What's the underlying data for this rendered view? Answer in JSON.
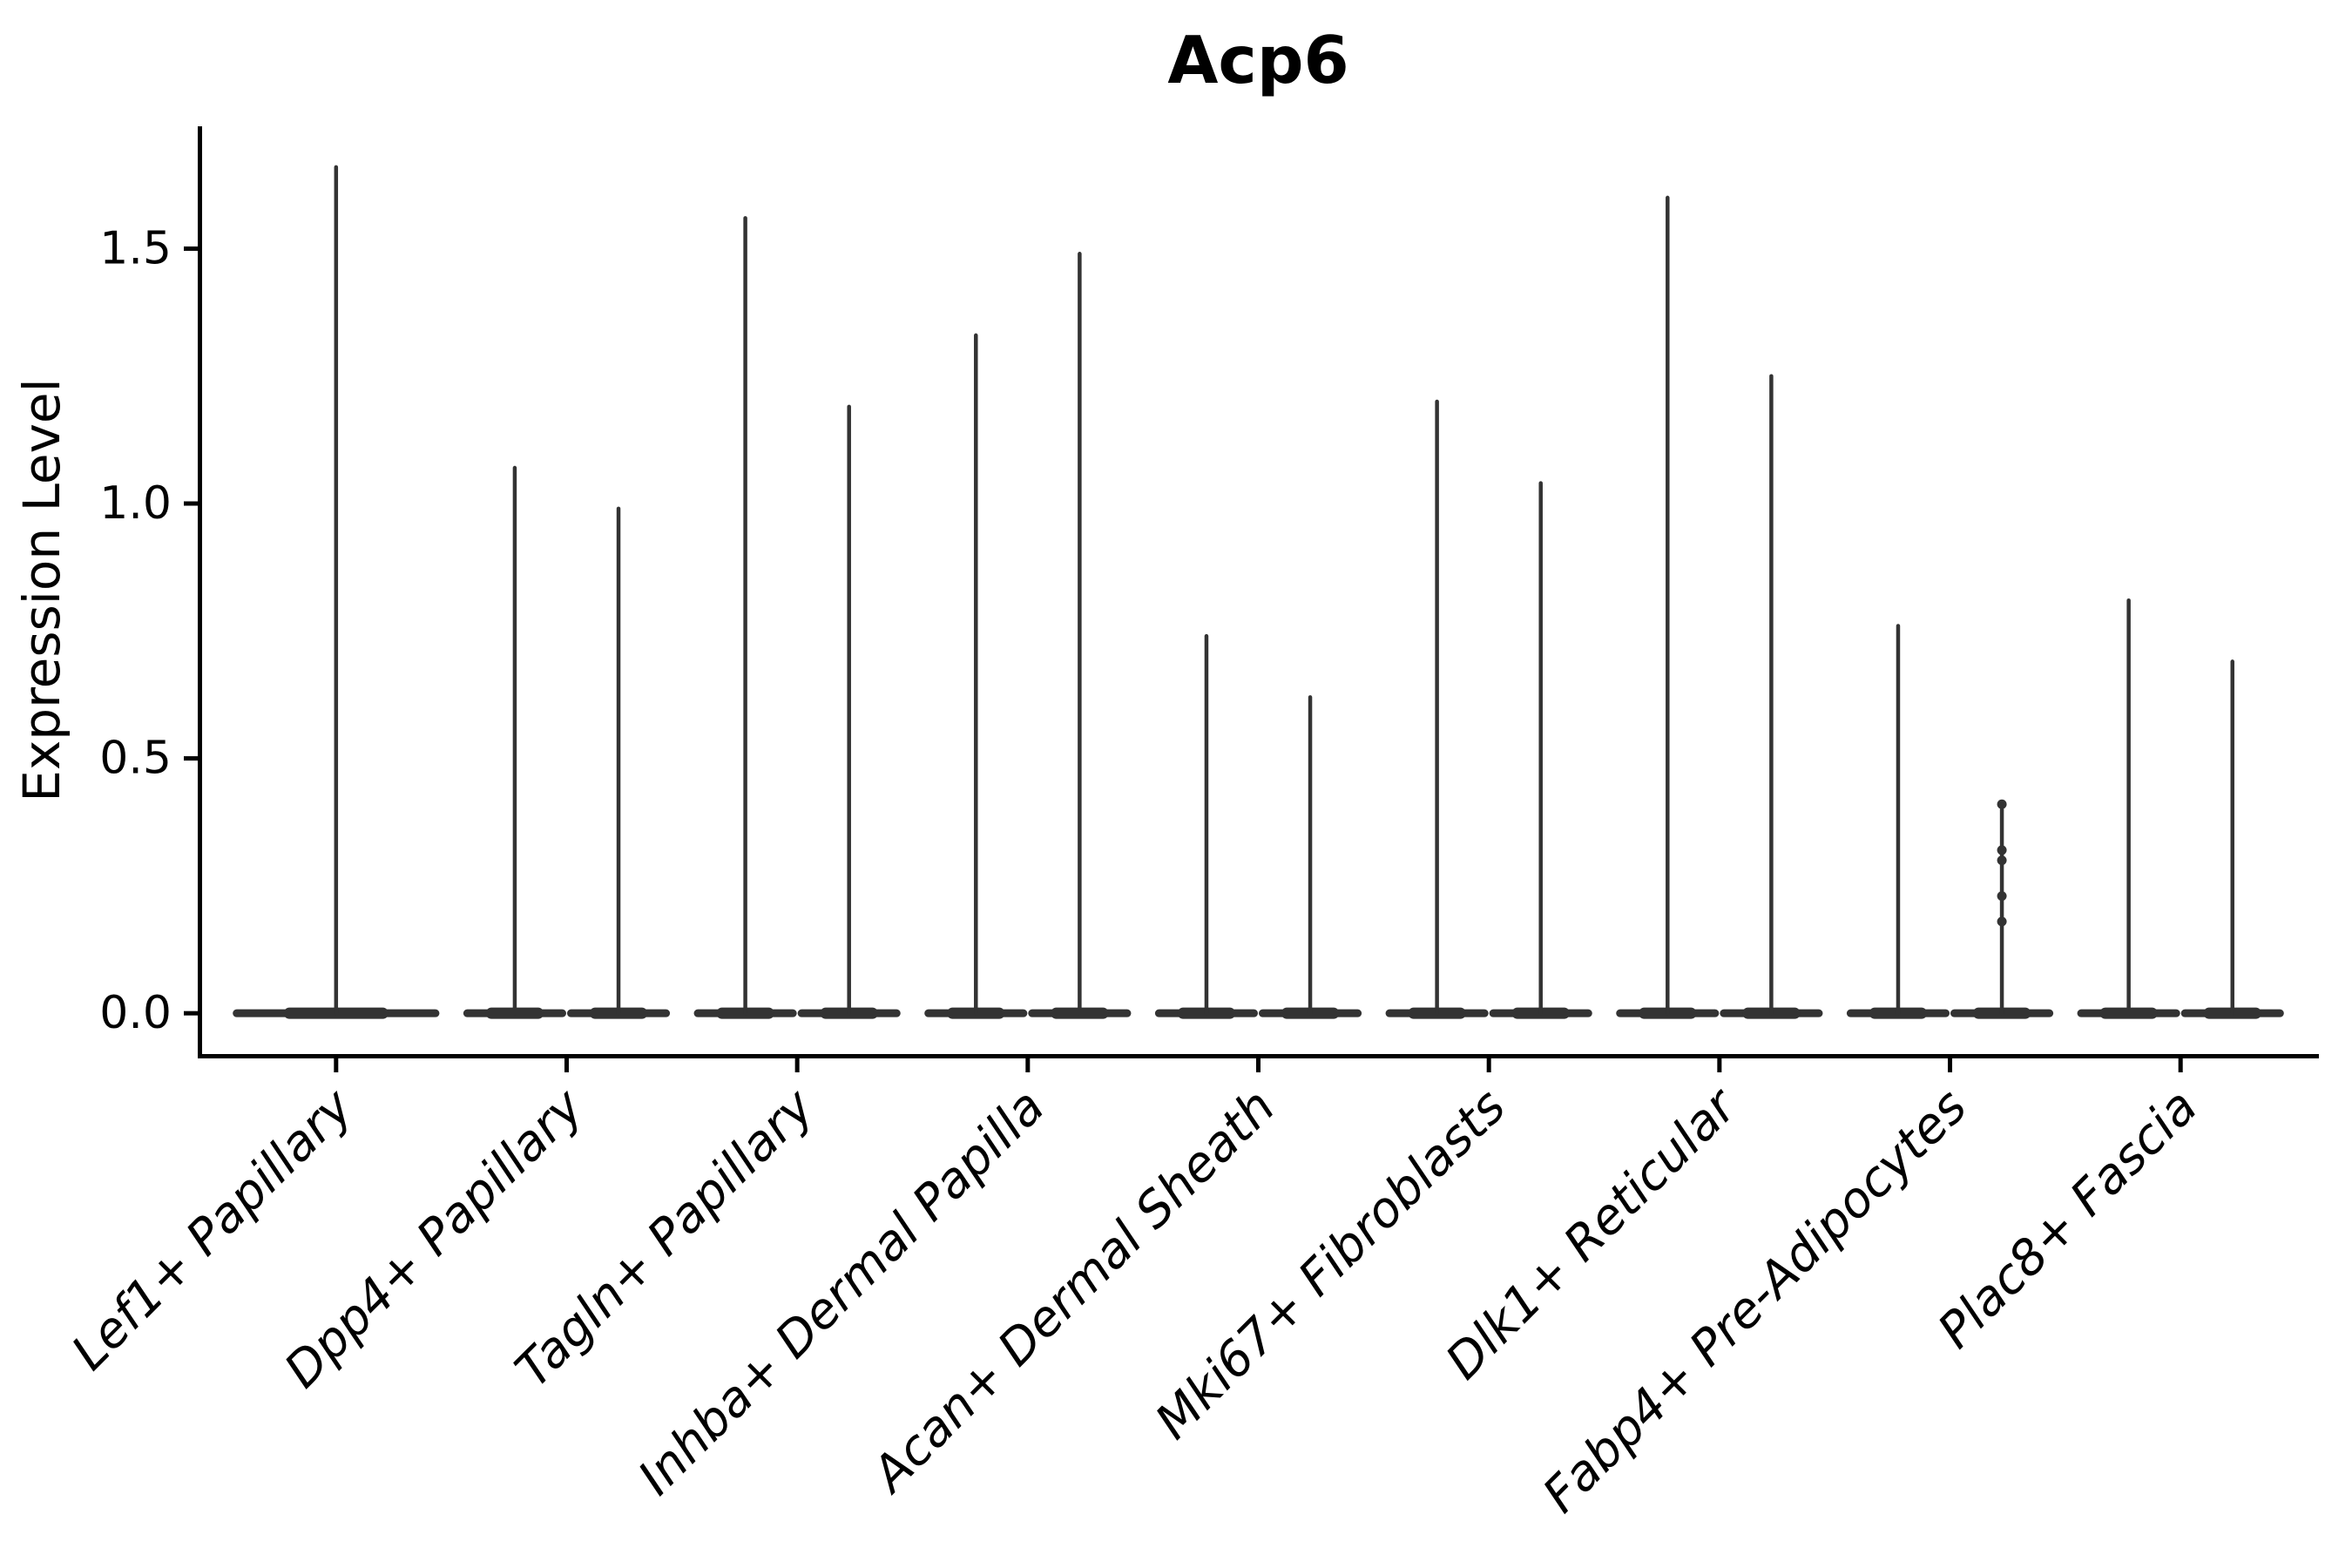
{
  "figure": {
    "background": "#ffffff"
  },
  "chart_data": {
    "type": "violin",
    "title": "Acp6",
    "xlabel": "",
    "ylabel": "Expression Level",
    "categories": [
      "Lef1+ Papillary",
      "Dpp4+ Papillary",
      "Tagln+ Papillary",
      "Inhba+ Dermal Papilla",
      "Acan+ Dermal Sheath",
      "Mki67+ Fibroblasts",
      "Dlk1+ Reticular",
      "Fabp4+ Pre-Adipocytes",
      "Plac8+ Fascia"
    ],
    "ytick_labels": [
      "0.0",
      "0.5",
      "1.0",
      "1.5"
    ],
    "ytick_values": [
      0.0,
      0.5,
      1.0,
      1.5
    ],
    "ylim": [
      -0.08,
      1.74
    ],
    "grid": false,
    "legend": "none",
    "x_tick_label_rotation_deg": 45,
    "x_tick_label_style": "italic",
    "violin_shape_note": "each violin is a flat dense base at expression 0 with a very thin vertical spike up to its max value",
    "series": [
      {
        "category": "Lef1+ Papillary",
        "violins": [
          {
            "group": "single",
            "baseline": 0.0,
            "max": 1.66
          }
        ]
      },
      {
        "category": "Dpp4+ Papillary",
        "violins": [
          {
            "group": "left",
            "baseline": 0.0,
            "max": 1.07
          },
          {
            "group": "right",
            "baseline": 0.0,
            "max": 0.99
          }
        ]
      },
      {
        "category": "Tagln+ Papillary",
        "violins": [
          {
            "group": "left",
            "baseline": 0.0,
            "max": 1.56
          },
          {
            "group": "right",
            "baseline": 0.0,
            "max": 1.19
          }
        ]
      },
      {
        "category": "Inhba+ Dermal Papilla",
        "violins": [
          {
            "group": "left",
            "baseline": 0.0,
            "max": 1.33
          },
          {
            "group": "right",
            "baseline": 0.0,
            "max": 1.49
          }
        ]
      },
      {
        "category": "Acan+ Dermal Sheath",
        "violins": [
          {
            "group": "left",
            "baseline": 0.0,
            "max": 0.74
          },
          {
            "group": "right",
            "baseline": 0.0,
            "max": 0.62
          }
        ]
      },
      {
        "category": "Mki67+ Fibroblasts",
        "violins": [
          {
            "group": "left",
            "baseline": 0.0,
            "max": 1.2
          },
          {
            "group": "right",
            "baseline": 0.0,
            "max": 1.04
          }
        ]
      },
      {
        "category": "Dlk1+ Reticular",
        "violins": [
          {
            "group": "left",
            "baseline": 0.0,
            "max": 1.6
          },
          {
            "group": "right",
            "baseline": 0.0,
            "max": 1.25
          }
        ]
      },
      {
        "category": "Fabp4+ Pre-Adipocytes",
        "violins": [
          {
            "group": "left",
            "baseline": 0.0,
            "max": 0.76
          },
          {
            "group": "right",
            "baseline": 0.0,
            "max": 0.4,
            "points": [
              0.41,
              0.32,
              0.3,
              0.23,
              0.18
            ]
          }
        ]
      },
      {
        "category": "Plac8+ Fascia",
        "violins": [
          {
            "group": "left",
            "baseline": 0.0,
            "max": 0.81
          },
          {
            "group": "right",
            "baseline": 0.0,
            "max": 0.69
          }
        ]
      }
    ],
    "colors": {
      "violin": "#333333",
      "axis": "#000000",
      "text": "#000000",
      "background": "#ffffff"
    }
  }
}
